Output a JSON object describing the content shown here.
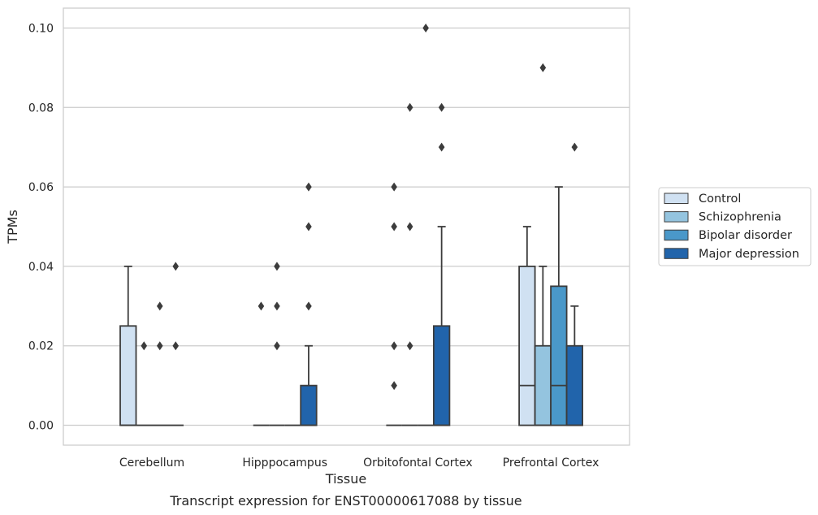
{
  "caption": "Transcript expression for ENST00000617088 by tissue",
  "chart_data": {
    "type": "box",
    "xlabel": "Tissue",
    "ylabel": "TPMs",
    "ylim": [
      -0.005,
      0.105
    ],
    "yticks": [
      "0.00",
      "0.02",
      "0.04",
      "0.06",
      "0.08",
      "0.10"
    ],
    "ytick_values": [
      0.0,
      0.02,
      0.04,
      0.06,
      0.08,
      0.1
    ],
    "grid": true,
    "legend_position": "right",
    "categories": [
      "Cerebellum",
      "Hipppocampus",
      "Orbitofontal Cortex",
      "Prefrontal Cortex"
    ],
    "series": [
      {
        "name": "Control",
        "color": "#d0e1f2",
        "boxes": [
          {
            "q1": 0.0,
            "median": 0.0,
            "q3": 0.025,
            "whislo": 0.0,
            "whishi": 0.04,
            "fliers": []
          },
          {
            "q1": 0.0,
            "median": 0.0,
            "q3": 0.0,
            "whislo": 0.0,
            "whishi": 0.0,
            "fliers": [
              0.03
            ]
          },
          {
            "q1": 0.0,
            "median": 0.0,
            "q3": 0.0,
            "whislo": 0.0,
            "whishi": 0.0,
            "fliers": [
              0.01,
              0.02,
              0.05,
              0.06
            ]
          },
          {
            "q1": 0.0,
            "median": 0.01,
            "q3": 0.04,
            "whislo": 0.0,
            "whishi": 0.05,
            "fliers": []
          }
        ]
      },
      {
        "name": "Schizophrenia",
        "color": "#94c4df",
        "boxes": [
          {
            "q1": 0.0,
            "median": 0.0,
            "q3": 0.0,
            "whislo": 0.0,
            "whishi": 0.0,
            "fliers": [
              0.02
            ]
          },
          {
            "q1": 0.0,
            "median": 0.0,
            "q3": 0.0,
            "whislo": 0.0,
            "whishi": 0.0,
            "fliers": [
              0.02,
              0.03,
              0.04
            ]
          },
          {
            "q1": 0.0,
            "median": 0.0,
            "q3": 0.0,
            "whislo": 0.0,
            "whishi": 0.0,
            "fliers": [
              0.02,
              0.05,
              0.08
            ]
          },
          {
            "q1": 0.0,
            "median": 0.0,
            "q3": 0.02,
            "whislo": 0.0,
            "whishi": 0.04,
            "fliers": [
              0.09
            ]
          }
        ]
      },
      {
        "name": "Bipolar disorder",
        "color": "#4a98c9",
        "boxes": [
          {
            "q1": 0.0,
            "median": 0.0,
            "q3": 0.0,
            "whislo": 0.0,
            "whishi": 0.0,
            "fliers": [
              0.02,
              0.03
            ]
          },
          {
            "q1": 0.0,
            "median": 0.0,
            "q3": 0.0,
            "whislo": 0.0,
            "whishi": 0.0,
            "fliers": []
          },
          {
            "q1": 0.0,
            "median": 0.0,
            "q3": 0.0,
            "whislo": 0.0,
            "whishi": 0.0,
            "fliers": [
              0.1
            ]
          },
          {
            "q1": 0.0,
            "median": 0.01,
            "q3": 0.035,
            "whislo": 0.0,
            "whishi": 0.06,
            "fliers": []
          }
        ]
      },
      {
        "name": "Major depression",
        "color": "#2164ab",
        "boxes": [
          {
            "q1": 0.0,
            "median": 0.0,
            "q3": 0.0,
            "whislo": 0.0,
            "whishi": 0.0,
            "fliers": [
              0.02,
              0.04
            ]
          },
          {
            "q1": 0.0,
            "median": 0.0,
            "q3": 0.01,
            "whislo": 0.0,
            "whishi": 0.02,
            "fliers": [
              0.03,
              0.05,
              0.06
            ]
          },
          {
            "q1": 0.0,
            "median": 0.0,
            "q3": 0.025,
            "whislo": 0.0,
            "whishi": 0.05,
            "fliers": [
              0.07,
              0.08
            ]
          },
          {
            "q1": 0.0,
            "median": 0.0,
            "q3": 0.02,
            "whislo": 0.0,
            "whishi": 0.03,
            "fliers": [
              0.07
            ]
          }
        ]
      }
    ]
  }
}
